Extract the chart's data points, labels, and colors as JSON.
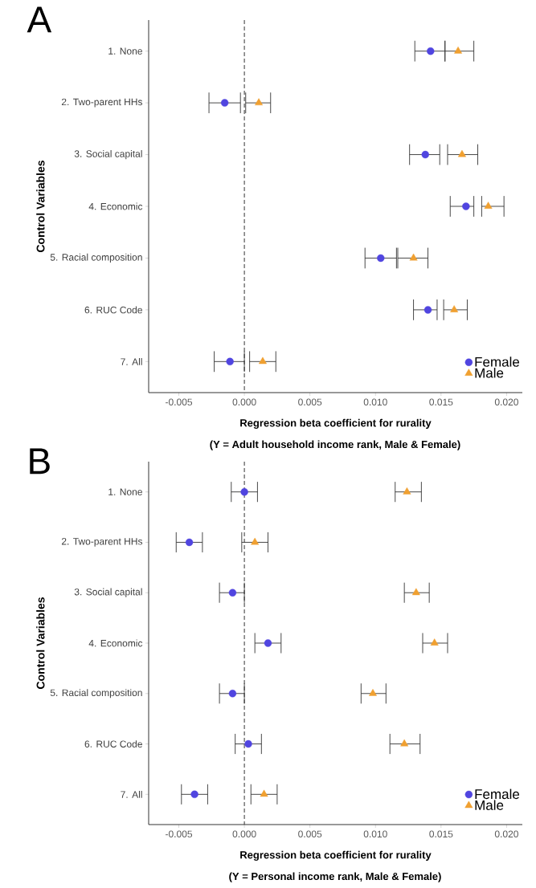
{
  "chart_data": [
    {
      "type": "scatter",
      "title": "A",
      "orientation": "horizontal",
      "xlabel": "Regression beta coefficient for rurality",
      "ylabel": "Control Variables",
      "annotations": [
        "(Y = Adult household income rank, Male & Female)"
      ],
      "categories": [
        "1. None",
        "2. Two-parent HHs",
        "3. Social capital",
        "4. Economic",
        "5. Racial composition",
        "6. RUC Code",
        "7. All"
      ],
      "series": [
        {
          "name": "Female",
          "color": "#5045e0",
          "marker": "circle",
          "values": [
            0.0142,
            -0.0015,
            0.0138,
            0.0169,
            0.0104,
            0.014,
            -0.0011
          ],
          "errors": [
            [
              0.013,
              0.0153
            ],
            [
              -0.0027,
              -0.0003
            ],
            [
              0.0126,
              0.0149
            ],
            [
              0.0157,
              0.0175
            ],
            [
              0.0092,
              0.0116
            ],
            [
              0.0129,
              0.0147
            ],
            [
              -0.0023,
              0.0
            ]
          ]
        },
        {
          "name": "Male",
          "color": "#f0a030",
          "marker": "triangle",
          "values": [
            0.0163,
            0.0011,
            0.0166,
            0.0186,
            0.0129,
            0.016,
            0.0014
          ],
          "errors": [
            [
              0.0153,
              0.0175
            ],
            [
              0.0001,
              0.002
            ],
            [
              0.0155,
              0.0178
            ],
            [
              0.0181,
              0.0198
            ],
            [
              0.0117,
              0.014
            ],
            [
              0.0152,
              0.017
            ],
            [
              0.0004,
              0.0024
            ]
          ]
        }
      ],
      "xlim": [
        -0.0073,
        0.0212
      ],
      "xticks": [
        {
          "value": -0.005,
          "label": "-0.005"
        },
        {
          "value": 0,
          "label": "0.000"
        },
        {
          "value": 0.005,
          "label": "0.005"
        },
        {
          "value": 0.01,
          "label": "0.010"
        },
        {
          "value": 0.015,
          "label": "0.015"
        },
        {
          "value": 0.02,
          "label": "0.020"
        }
      ],
      "ref_lines": [
        {
          "axis": "x",
          "value": 0,
          "line_style": "dashed"
        }
      ],
      "legend": "bottom right",
      "grid": false
    },
    {
      "type": "scatter",
      "title": "B",
      "orientation": "horizontal",
      "xlabel": "Regression beta coefficient for rurality",
      "ylabel": "Control Variables",
      "annotations": [
        "(Y = Personal income rank, Male & Female)"
      ],
      "categories": [
        "1. None",
        "2. Two-parent HHs",
        "3. Social capital",
        "4. Economic",
        "5. Racial composition",
        "6. RUC Code",
        "7. All"
      ],
      "series": [
        {
          "name": "Female",
          "color": "#5045e0",
          "marker": "circle",
          "values": [
            0.0,
            -0.0042,
            -0.0009,
            0.0018,
            -0.0009,
            0.0003,
            -0.0038
          ],
          "errors": [
            [
              -0.001,
              0.001
            ],
            [
              -0.0052,
              -0.0032
            ],
            [
              -0.0019,
              0.0
            ],
            [
              0.0008,
              0.0028
            ],
            [
              -0.0019,
              0.0
            ],
            [
              -0.0007,
              0.0013
            ],
            [
              -0.0048,
              -0.0028
            ]
          ]
        },
        {
          "name": "Male",
          "color": "#f0a030",
          "marker": "triangle",
          "values": [
            0.0124,
            0.0008,
            0.0131,
            0.0145,
            0.0098,
            0.0122,
            0.0015
          ],
          "errors": [
            [
              0.0115,
              0.0135
            ],
            [
              -0.0002,
              0.0018
            ],
            [
              0.0122,
              0.0141
            ],
            [
              0.0136,
              0.0155
            ],
            [
              0.0089,
              0.0108
            ],
            [
              0.0111,
              0.0134
            ],
            [
              0.0005,
              0.0025
            ]
          ]
        }
      ],
      "xlim": [
        -0.0073,
        0.0212
      ],
      "xticks": [
        {
          "value": -0.005,
          "label": "-0.005"
        },
        {
          "value": 0,
          "label": "0.000"
        },
        {
          "value": 0.005,
          "label": "0.005"
        },
        {
          "value": 0.01,
          "label": "0.010"
        },
        {
          "value": 0.015,
          "label": "0.015"
        },
        {
          "value": 0.02,
          "label": "0.020"
        }
      ],
      "ref_lines": [
        {
          "axis": "x",
          "value": 0,
          "line_style": "dashed"
        }
      ],
      "legend": "bottom right",
      "grid": false
    }
  ]
}
